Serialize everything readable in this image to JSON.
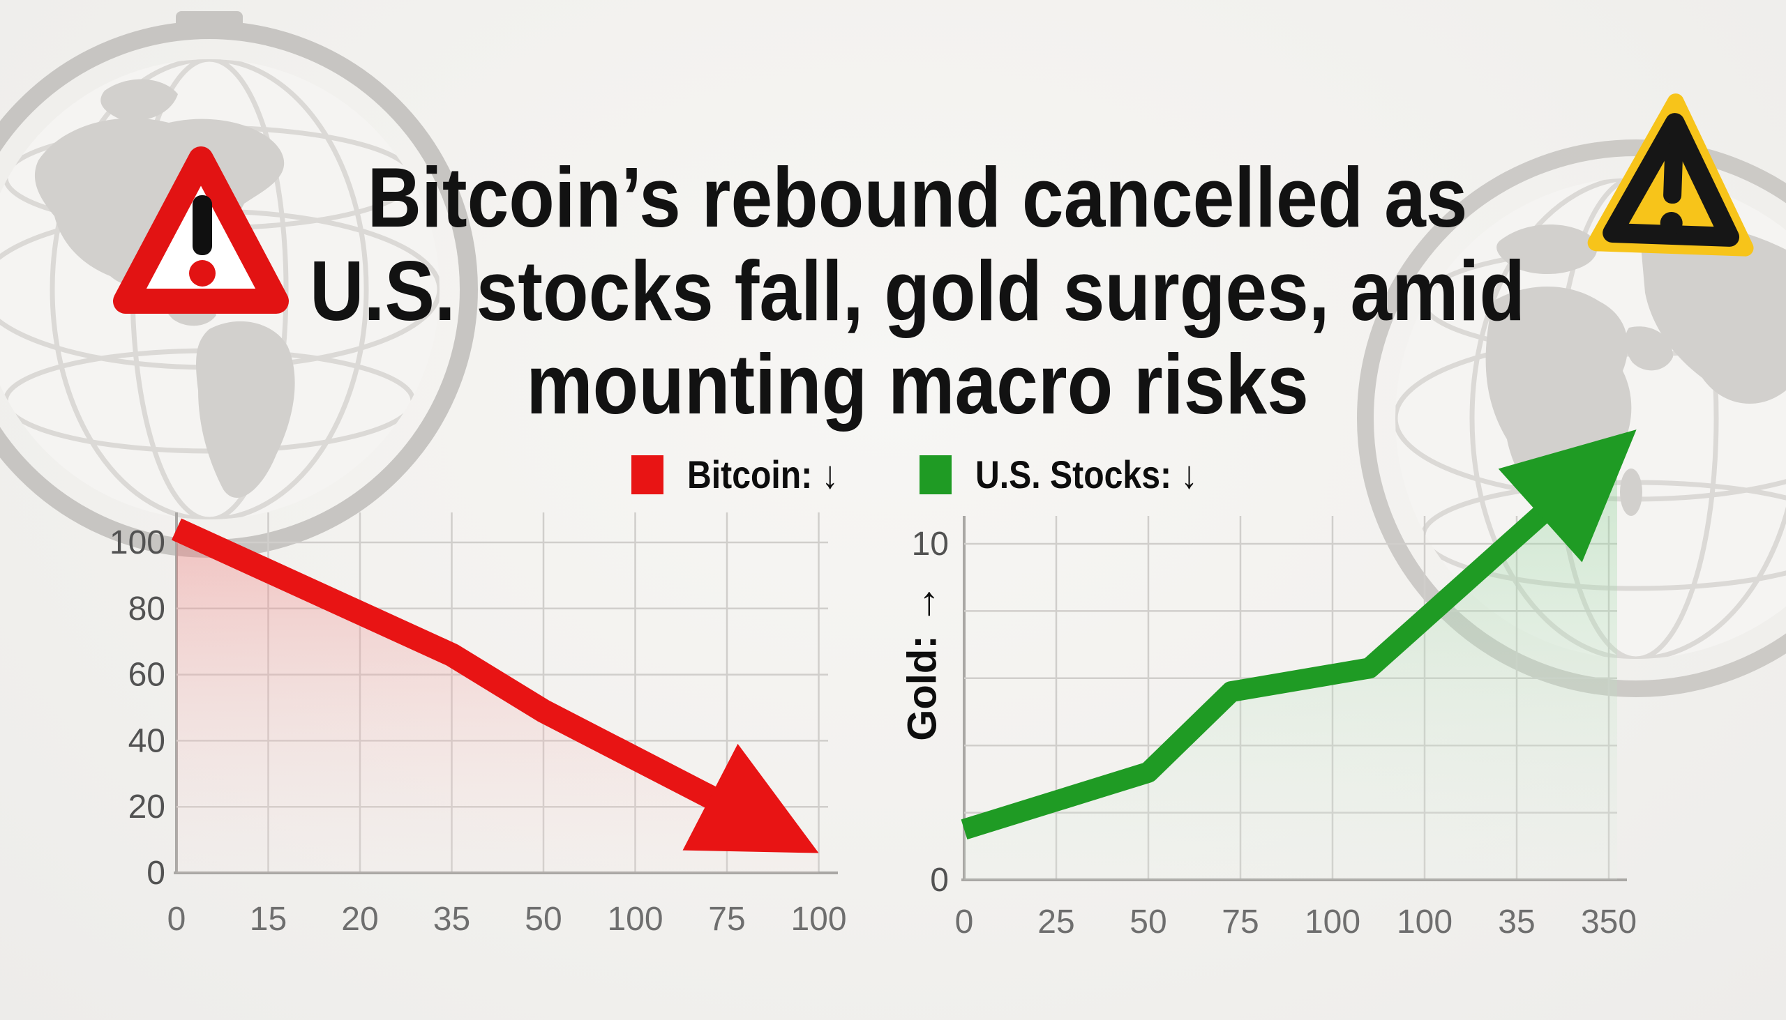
{
  "headline": {
    "line1": "Bitcoin’s rebound cancelled as",
    "line2": "U.S. stocks fall, gold surges, amid",
    "line3": "mounting macro risks"
  },
  "icons": {
    "left_warning": "red-warning-triangle-exclamation",
    "right_warning": "yellow-warning-triangle-exclamation",
    "left_globe": "gray-wireframe-globe",
    "right_globe": "gray-wireframe-globe"
  },
  "colors": {
    "background": "#f2f1ee",
    "headline_text": "#121212",
    "bitcoin_red": "#e81414",
    "stocks_green": "#1f9b24",
    "warning_yellow": "#f7c41a",
    "grid_gray": "#d0cecb",
    "tick_gray": "#6e6e6e"
  },
  "chart_data": [
    {
      "id": "bitcoin-chart",
      "type": "area",
      "series_label": "Bitcoin: ↓",
      "trend": "down",
      "line_color": "#e81414",
      "x_tick_labels": [
        "0",
        "15",
        "20",
        "35",
        "50",
        "100",
        "75",
        "100"
      ],
      "y_tick_labels": [
        "0",
        "20",
        "40",
        "60",
        "80",
        "100"
      ],
      "y_grid_values": [
        20,
        40,
        60,
        80,
        100
      ],
      "y_range": [
        0,
        100
      ],
      "values_at_ticks": [
        104,
        91,
        78,
        66,
        49,
        36,
        24,
        11
      ],
      "vertices": [
        [
          0,
          104
        ],
        [
          3,
          66
        ],
        [
          4,
          49
        ],
        [
          7.0,
          6
        ]
      ],
      "arrow_tip": [
        7.0,
        6
      ],
      "grid": true,
      "legend_position": "top"
    },
    {
      "id": "stocks-gold-chart",
      "type": "area",
      "series_label": "U.S. Stocks: ↓",
      "y_axis_title": "Gold: →",
      "trend": "up",
      "line_color": "#1f9b24",
      "x_tick_labels": [
        "0",
        "25",
        "50",
        "75",
        "100",
        "100",
        "35",
        "350"
      ],
      "y_tick_labels": [
        "0",
        "10"
      ],
      "y_grid_values": [
        2,
        4,
        6,
        8,
        10
      ],
      "y_range": [
        0,
        10
      ],
      "values_at_ticks": [
        1.5,
        2.4,
        3.2,
        5.7,
        6.1,
        6.6,
        8.6,
        11.6
      ],
      "vertices": [
        [
          0,
          1.5
        ],
        [
          2,
          3.2
        ],
        [
          2.9,
          5.6
        ],
        [
          4.4,
          6.3
        ],
        [
          7.3,
          13.4
        ]
      ],
      "arrow_tip": [
        7.3,
        13.4
      ],
      "grid": true,
      "legend_position": "top"
    }
  ]
}
